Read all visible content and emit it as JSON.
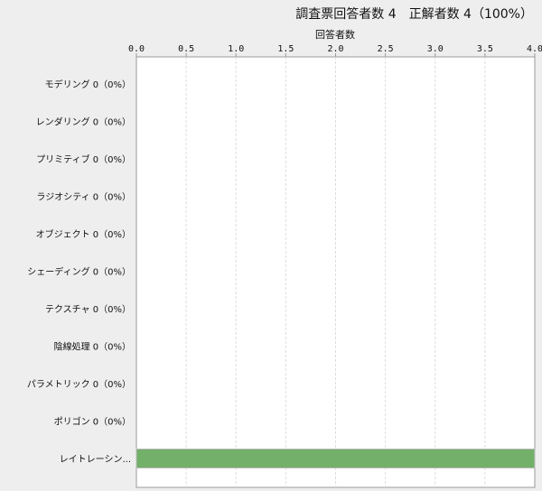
{
  "chart_data": {
    "type": "bar",
    "orientation": "horizontal",
    "title": "調査票回答者数 4　正解者数 4（100%）",
    "xlabel": "回答者数",
    "ylabel": "",
    "xlim": [
      0,
      4.0
    ],
    "xticks": [
      "0.0",
      "0.5",
      "1.0",
      "1.5",
      "2.0",
      "2.5",
      "3.0",
      "3.5",
      "4.0"
    ],
    "grid": true,
    "categories": [
      "モデリング 0（0%）",
      "レンダリング 0（0%）",
      "プリミティブ 0（0%）",
      "ラジオシティ 0（0%）",
      "オブジェクト 0（0%）",
      "シェーディング 0（0%）",
      "テクスチャ 0（0%）",
      "陰線処理 0（0%）",
      "パラメトリック 0（0%）",
      "ポリゴン 0（0%）",
      "レイトレーシン..."
    ],
    "values": [
      0,
      0,
      0,
      0,
      0,
      0,
      0,
      0,
      0,
      0,
      4
    ],
    "bar_color": "#73b06a"
  }
}
